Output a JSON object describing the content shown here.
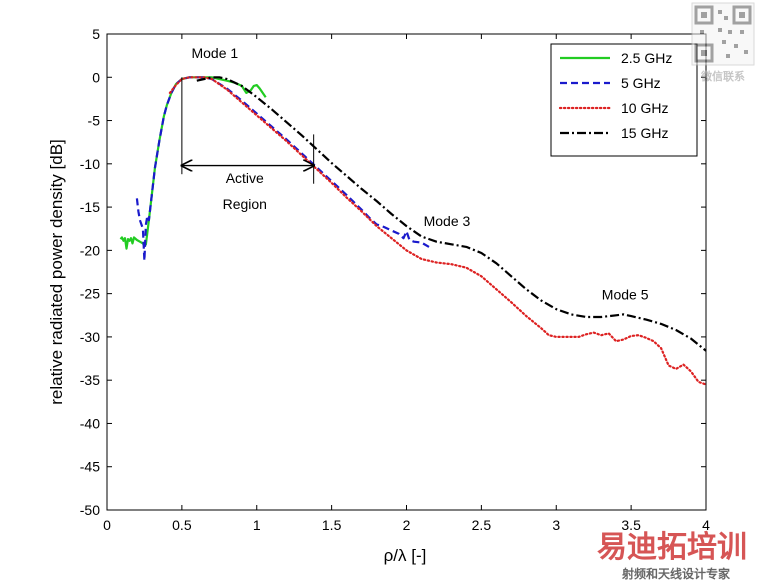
{
  "chart_data": {
    "type": "line",
    "xlabel": "ρ/λ [-]",
    "ylabel": "relative radiated power density [dB]",
    "xlim": [
      0,
      4
    ],
    "ylim": [
      -50,
      5
    ],
    "xticks": [
      0,
      0.5,
      1,
      1.5,
      2,
      2.5,
      3,
      3.5,
      4
    ],
    "xtick_labels": [
      "0",
      "0.5",
      "1",
      "1.5",
      "2",
      "2.5",
      "3",
      "3.5",
      "4"
    ],
    "yticks": [
      5,
      0,
      -5,
      -10,
      -15,
      -20,
      -25,
      -30,
      -35,
      -40,
      -45,
      -50
    ],
    "ytick_labels": [
      "5",
      "0",
      "-5",
      "-10",
      "-15",
      "-20",
      "-25",
      "-30",
      "-35",
      "-40",
      "-45",
      "-50"
    ],
    "legend_position": "top-right",
    "series": [
      {
        "name": "2.5 GHz",
        "color": "#22cc22",
        "dash": "solid",
        "x": [
          0.09,
          0.1,
          0.11,
          0.12,
          0.13,
          0.14,
          0.15,
          0.16,
          0.17,
          0.18,
          0.2,
          0.22,
          0.24,
          0.25,
          0.26,
          0.28,
          0.3,
          0.32,
          0.35,
          0.38,
          0.4,
          0.43,
          0.46,
          0.5,
          0.55,
          0.6,
          0.65,
          0.7,
          0.75,
          0.8,
          0.85,
          0.9,
          0.93,
          0.96,
          0.98,
          1.0,
          1.02,
          1.04,
          1.06
        ],
        "y": [
          -18.7,
          -18.5,
          -18.9,
          -18.6,
          -19.8,
          -18.7,
          -18.9,
          -18.6,
          -19.2,
          -18.5,
          -18.8,
          -19.0,
          -19.2,
          -19.5,
          -19.3,
          -16.5,
          -13.5,
          -10.5,
          -7.3,
          -4.5,
          -3.2,
          -1.8,
          -0.8,
          -0.2,
          0.0,
          0.0,
          0.0,
          0.0,
          -0.2,
          -0.4,
          -0.6,
          -1.0,
          -1.8,
          -1.5,
          -1.0,
          -0.9,
          -1.3,
          -1.8,
          -2.3
        ]
      },
      {
        "name": "5 GHz",
        "color": "#1a1acc",
        "dash": "dashed",
        "x": [
          0.2,
          0.21,
          0.22,
          0.24,
          0.25,
          0.26,
          0.27,
          0.28,
          0.3,
          0.32,
          0.35,
          0.38,
          0.4,
          0.43,
          0.46,
          0.5,
          0.55,
          0.6,
          0.65,
          0.7,
          0.8,
          0.9,
          1.0,
          1.1,
          1.2,
          1.3,
          1.4,
          1.5,
          1.6,
          1.7,
          1.75,
          1.8,
          1.85,
          1.9,
          1.95,
          1.98,
          2.0,
          2.02,
          2.05,
          2.1,
          2.15
        ],
        "y": [
          -14.0,
          -15.5,
          -16.5,
          -17.5,
          -21.2,
          -17.0,
          -16.0,
          -16.5,
          -13.5,
          -10.5,
          -7.3,
          -4.5,
          -3.2,
          -1.8,
          -0.8,
          -0.2,
          0.0,
          0.0,
          0.0,
          -0.2,
          -1.3,
          -2.7,
          -4.2,
          -5.7,
          -7.2,
          -8.8,
          -10.4,
          -12.0,
          -13.6,
          -15.3,
          -16.2,
          -17.0,
          -17.3,
          -17.7,
          -18.1,
          -18.6,
          -17.8,
          -18.8,
          -19.0,
          -19.1,
          -19.6
        ]
      },
      {
        "name": "10 GHz",
        "color": "#dd2222",
        "dash": "dotted",
        "x": [
          0.42,
          0.46,
          0.5,
          0.55,
          0.6,
          0.65,
          0.7,
          0.8,
          0.9,
          1.0,
          1.1,
          1.2,
          1.3,
          1.4,
          1.5,
          1.6,
          1.7,
          1.8,
          1.9,
          2.0,
          2.05,
          2.1,
          2.2,
          2.3,
          2.4,
          2.5,
          2.6,
          2.7,
          2.8,
          2.9,
          2.95,
          3.0,
          3.05,
          3.1,
          3.15,
          3.2,
          3.25,
          3.3,
          3.35,
          3.4,
          3.45,
          3.5,
          3.55,
          3.6,
          3.65,
          3.7,
          3.75,
          3.8,
          3.85,
          3.9,
          3.95,
          4.0
        ],
        "y": [
          -1.8,
          -0.9,
          -0.2,
          0.0,
          0.0,
          0.0,
          -0.2,
          -1.4,
          -2.9,
          -4.4,
          -5.9,
          -7.4,
          -9.0,
          -10.6,
          -12.2,
          -13.9,
          -15.5,
          -17.2,
          -18.6,
          -20.0,
          -20.5,
          -21.0,
          -21.4,
          -21.6,
          -22.0,
          -23.0,
          -24.5,
          -26.0,
          -27.6,
          -29.0,
          -29.8,
          -30.0,
          -30.0,
          -30.0,
          -30.0,
          -29.7,
          -29.5,
          -29.8,
          -29.6,
          -30.5,
          -30.3,
          -29.9,
          -29.8,
          -30.1,
          -30.5,
          -31.3,
          -33.3,
          -33.7,
          -33.2,
          -34.0,
          -35.2,
          -35.5
        ]
      },
      {
        "name": "15 GHz",
        "color": "#000000",
        "dash": "dashdot",
        "x": [
          0.6,
          0.65,
          0.7,
          0.75,
          0.8,
          0.9,
          1.0,
          1.1,
          1.2,
          1.3,
          1.4,
          1.5,
          1.6,
          1.7,
          1.8,
          1.9,
          2.0,
          2.1,
          2.2,
          2.3,
          2.4,
          2.5,
          2.6,
          2.7,
          2.8,
          2.9,
          3.0,
          3.1,
          3.2,
          3.3,
          3.4,
          3.45,
          3.5,
          3.6,
          3.7,
          3.8,
          3.9,
          4.0
        ],
        "y": [
          -0.4,
          -0.2,
          0.0,
          0.0,
          -0.2,
          -1.0,
          -2.3,
          -3.7,
          -5.2,
          -6.7,
          -8.3,
          -9.9,
          -11.4,
          -12.9,
          -14.3,
          -15.8,
          -17.2,
          -18.4,
          -19.0,
          -19.3,
          -19.6,
          -20.3,
          -21.5,
          -23.0,
          -24.5,
          -25.8,
          -26.8,
          -27.4,
          -27.7,
          -27.7,
          -27.5,
          -27.4,
          -27.6,
          -28.0,
          -28.5,
          -29.2,
          -30.2,
          -31.6
        ]
      }
    ],
    "annotations": [
      {
        "text": "Mode 1",
        "x": 0.72,
        "y": 2.2
      },
      {
        "text": "Active",
        "x": 0.92,
        "y": -12.2
      },
      {
        "text": "Region",
        "x": 0.92,
        "y": -15.2
      },
      {
        "text": "Mode 3",
        "x": 2.27,
        "y": -17.2
      },
      {
        "text": "Mode 5",
        "x": 3.46,
        "y": -25.7
      }
    ],
    "active_region": {
      "x_start": 0.5,
      "x_end": 1.38,
      "y_arrow": -10.2,
      "y_top": 0,
      "y_bottom": -11.2,
      "y_bottom_right": -12.3
    }
  }
}
